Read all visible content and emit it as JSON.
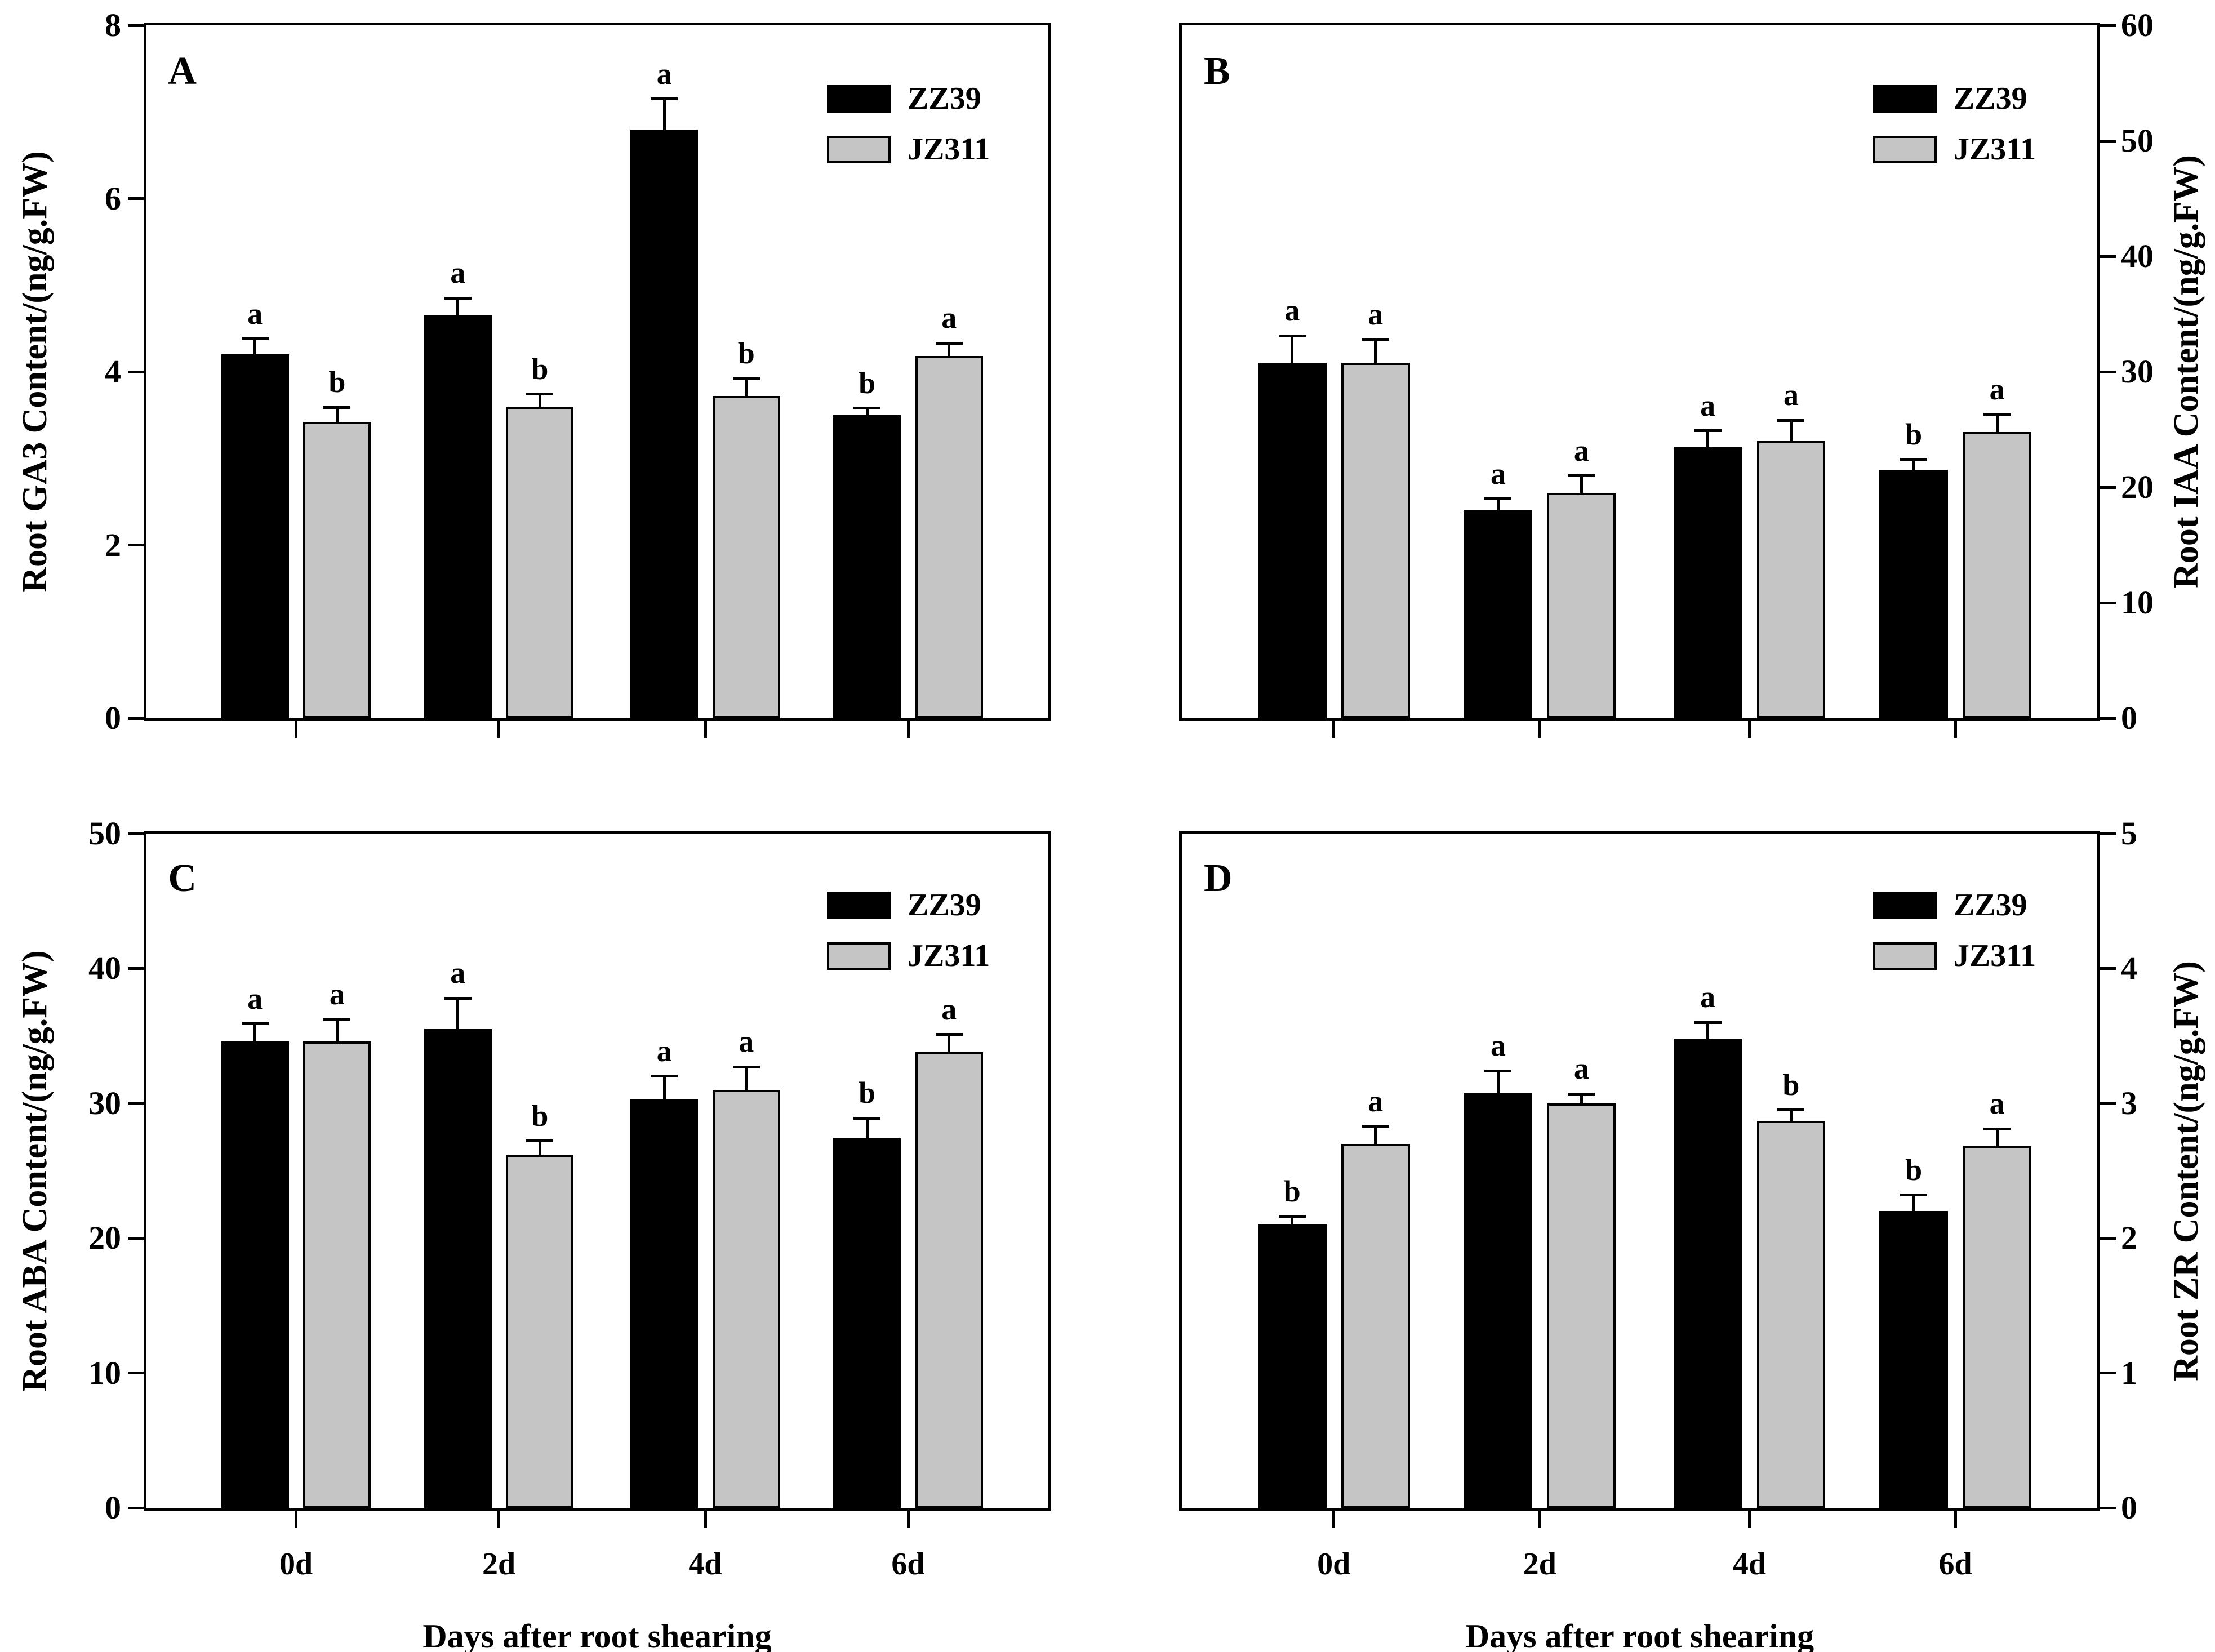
{
  "figure": {
    "background_color": "#ffffff",
    "text_color": "#000000",
    "x_axis_label": "Days after root shearing",
    "categories": [
      "0d",
      "2d",
      "4d",
      "6d"
    ],
    "legend": {
      "entries": [
        {
          "label": "ZZ39",
          "color": "#000000"
        },
        {
          "label": "JZ311",
          "color": "#c5c5c5"
        }
      ]
    }
  },
  "chart_data": [
    {
      "panel": "A",
      "type": "bar",
      "title": "",
      "ylabel": "Root GA3 Content/(ng/g.FW)",
      "xlabel": "",
      "y_axis_side": "left",
      "ylim": [
        0,
        8
      ],
      "yticks": [
        0,
        2,
        4,
        6,
        8
      ],
      "categories": [
        "0d",
        "2d",
        "4d",
        "6d"
      ],
      "x_tick_labels_shown": false,
      "x_axis_title_shown": false,
      "legend_entries": [
        "ZZ39",
        "JZ311"
      ],
      "series": [
        {
          "name": "ZZ39",
          "color": "#000000",
          "values": [
            4.2,
            4.65,
            6.8,
            3.5
          ],
          "errors": [
            0.18,
            0.2,
            0.35,
            0.08
          ],
          "sig_letters": [
            "a",
            "a",
            "a",
            "b"
          ]
        },
        {
          "name": "JZ311",
          "color": "#c5c5c5",
          "values": [
            3.42,
            3.6,
            3.72,
            4.18
          ],
          "errors": [
            0.17,
            0.14,
            0.2,
            0.15
          ],
          "sig_letters": [
            "b",
            "b",
            "b",
            "a"
          ]
        }
      ]
    },
    {
      "panel": "B",
      "type": "bar",
      "title": "",
      "ylabel": "Root IAA Content/(ng/g.FW)",
      "xlabel": "",
      "y_axis_side": "right",
      "ylim": [
        0,
        60
      ],
      "yticks": [
        0,
        10,
        20,
        30,
        40,
        50,
        60
      ],
      "categories": [
        "0d",
        "2d",
        "4d",
        "6d"
      ],
      "x_tick_labels_shown": false,
      "x_axis_title_shown": false,
      "legend_entries": [
        "ZZ39",
        "JZ311"
      ],
      "series": [
        {
          "name": "ZZ39",
          "color": "#000000",
          "values": [
            30.8,
            18.0,
            23.5,
            21.5
          ],
          "errors": [
            2.3,
            1.0,
            1.4,
            0.9
          ],
          "sig_letters": [
            "a",
            "a",
            "a",
            "b"
          ]
        },
        {
          "name": "JZ311",
          "color": "#c5c5c5",
          "values": [
            30.8,
            19.5,
            24.0,
            24.8
          ],
          "errors": [
            2.0,
            1.5,
            1.8,
            1.5
          ],
          "sig_letters": [
            "a",
            "a",
            "a",
            "a"
          ]
        }
      ]
    },
    {
      "panel": "C",
      "type": "bar",
      "title": "",
      "ylabel": "Root ABA Content/(ng/g.FW)",
      "xlabel": "Days after root shearing",
      "y_axis_side": "left",
      "ylim": [
        0,
        50
      ],
      "yticks": [
        0,
        10,
        20,
        30,
        40,
        50
      ],
      "categories": [
        "0d",
        "2d",
        "4d",
        "6d"
      ],
      "x_tick_labels_shown": true,
      "x_axis_title_shown": true,
      "legend_entries": [
        "ZZ39",
        "JZ311"
      ],
      "series": [
        {
          "name": "ZZ39",
          "color": "#000000",
          "values": [
            34.6,
            35.5,
            30.3,
            27.4
          ],
          "errors": [
            1.3,
            2.3,
            1.7,
            1.5
          ],
          "sig_letters": [
            "a",
            "a",
            "a",
            "b"
          ]
        },
        {
          "name": "JZ311",
          "color": "#c5c5c5",
          "values": [
            34.6,
            26.2,
            31.0,
            33.8
          ],
          "errors": [
            1.6,
            1.0,
            1.7,
            1.3
          ],
          "sig_letters": [
            "a",
            "b",
            "a",
            "a"
          ]
        }
      ]
    },
    {
      "panel": "D",
      "type": "bar",
      "title": "",
      "ylabel": "Root ZR Content/(ng/g.FW)",
      "xlabel": "Days after root shearing",
      "y_axis_side": "right",
      "ylim": [
        0,
        5
      ],
      "yticks": [
        0,
        1,
        2,
        3,
        4,
        5
      ],
      "categories": [
        "0d",
        "2d",
        "4d",
        "6d"
      ],
      "x_tick_labels_shown": true,
      "x_axis_title_shown": true,
      "legend_entries": [
        "ZZ39",
        "JZ311"
      ],
      "series": [
        {
          "name": "ZZ39",
          "color": "#000000",
          "values": [
            2.1,
            3.08,
            3.48,
            2.2
          ],
          "errors": [
            0.06,
            0.16,
            0.12,
            0.12
          ],
          "sig_letters": [
            "b",
            "a",
            "a",
            "b"
          ]
        },
        {
          "name": "JZ311",
          "color": "#c5c5c5",
          "values": [
            2.7,
            3.0,
            2.87,
            2.68
          ],
          "errors": [
            0.13,
            0.07,
            0.08,
            0.13
          ],
          "sig_letters": [
            "a",
            "a",
            "b",
            "a"
          ]
        }
      ]
    }
  ]
}
